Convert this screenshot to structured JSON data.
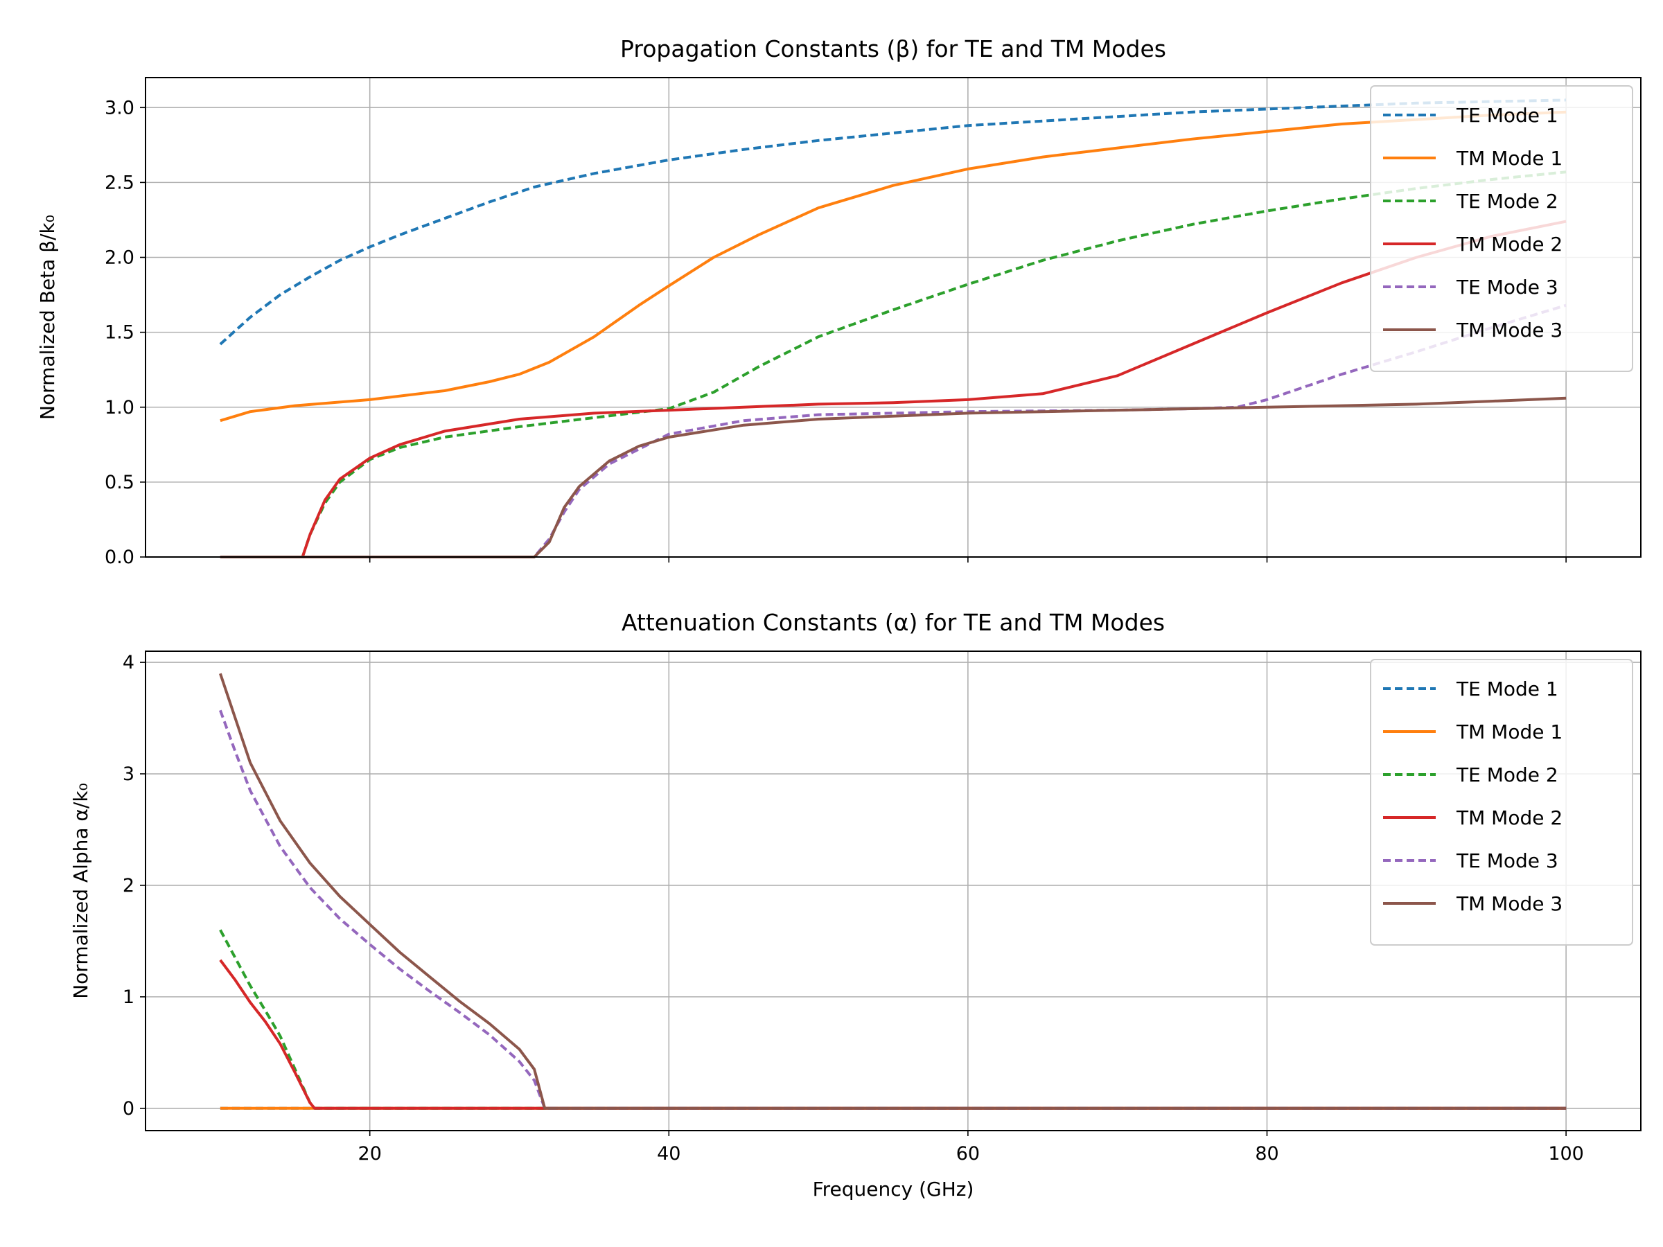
{
  "figure": {
    "xlabel": "Frequency (GHz)"
  },
  "chart_data": [
    {
      "type": "line",
      "title": "Propagation Constants (β) for TE and TM Modes",
      "xlabel": "",
      "ylabel": "Normalized Beta β/k₀",
      "xlim": [
        5,
        105
      ],
      "ylim": [
        0,
        3.2
      ],
      "xticks": [
        20,
        40,
        60,
        80,
        100
      ],
      "yticks": [
        0.0,
        0.5,
        1.0,
        1.5,
        2.0,
        2.5,
        3.0
      ],
      "xtick_labels": [
        "20",
        "40",
        "60",
        "80",
        "100"
      ],
      "ytick_labels": [
        "0.0",
        "0.5",
        "1.0",
        "1.5",
        "2.0",
        "2.5",
        "3.0"
      ],
      "grid": true,
      "legend_position": "top-right",
      "series": [
        {
          "name": "TE Mode 1",
          "color": "#1f77b4",
          "dash": true,
          "x": [
            10,
            12,
            14,
            16,
            18,
            20,
            22,
            25,
            28,
            31,
            35,
            40,
            45,
            50,
            55,
            60,
            65,
            70,
            75,
            80,
            85,
            90,
            95,
            100
          ],
          "y": [
            1.42,
            1.6,
            1.75,
            1.87,
            1.98,
            2.07,
            2.15,
            2.26,
            2.37,
            2.47,
            2.56,
            2.65,
            2.72,
            2.78,
            2.83,
            2.88,
            2.91,
            2.94,
            2.97,
            2.99,
            3.01,
            3.03,
            3.04,
            3.05
          ]
        },
        {
          "name": "TM Mode 1",
          "color": "#ff7f0e",
          "dash": false,
          "x": [
            10,
            12,
            15,
            20,
            25,
            28,
            30,
            32,
            35,
            38,
            40,
            43,
            46,
            50,
            55,
            60,
            65,
            70,
            75,
            80,
            85,
            90,
            95,
            100
          ],
          "y": [
            0.91,
            0.97,
            1.01,
            1.05,
            1.11,
            1.17,
            1.22,
            1.3,
            1.47,
            1.68,
            1.81,
            2.0,
            2.15,
            2.33,
            2.48,
            2.59,
            2.67,
            2.73,
            2.79,
            2.84,
            2.89,
            2.92,
            2.95,
            2.97
          ]
        },
        {
          "name": "TE Mode 2",
          "color": "#2ca02c",
          "dash": true,
          "x": [
            10,
            15.5,
            16,
            17,
            18,
            20,
            22,
            25,
            30,
            35,
            40,
            43,
            46,
            50,
            55,
            60,
            65,
            70,
            75,
            80,
            85,
            90,
            95,
            100
          ],
          "y": [
            0,
            0,
            0.15,
            0.36,
            0.5,
            0.65,
            0.73,
            0.8,
            0.87,
            0.93,
            0.99,
            1.1,
            1.27,
            1.47,
            1.65,
            1.82,
            1.98,
            2.11,
            2.22,
            2.31,
            2.39,
            2.46,
            2.52,
            2.57
          ]
        },
        {
          "name": "TM Mode 2",
          "color": "#d62728",
          "dash": false,
          "x": [
            10,
            15.5,
            16,
            17,
            18,
            20,
            22,
            25,
            30,
            35,
            40,
            45,
            50,
            55,
            60,
            65,
            70,
            75,
            80,
            85,
            90,
            95,
            100
          ],
          "y": [
            0,
            0,
            0.15,
            0.38,
            0.52,
            0.66,
            0.75,
            0.84,
            0.92,
            0.96,
            0.98,
            1.0,
            1.02,
            1.03,
            1.05,
            1.09,
            1.21,
            1.42,
            1.63,
            1.83,
            2.0,
            2.14,
            2.24
          ]
        },
        {
          "name": "TE Mode 3",
          "color": "#9467bd",
          "dash": true,
          "x": [
            10,
            31,
            32,
            33,
            34,
            36,
            38,
            40,
            45,
            50,
            60,
            70,
            75,
            78,
            80,
            85,
            90,
            95,
            100
          ],
          "y": [
            0,
            0,
            0.12,
            0.3,
            0.45,
            0.62,
            0.72,
            0.82,
            0.91,
            0.95,
            0.97,
            0.98,
            0.99,
            1.0,
            1.05,
            1.22,
            1.37,
            1.53,
            1.68
          ]
        },
        {
          "name": "TM Mode 3",
          "color": "#8c564b",
          "dash": false,
          "x": [
            10,
            31,
            32,
            33,
            34,
            36,
            38,
            40,
            45,
            50,
            60,
            70,
            80,
            85,
            90,
            95,
            100
          ],
          "y": [
            0,
            0,
            0.1,
            0.33,
            0.47,
            0.64,
            0.74,
            0.8,
            0.88,
            0.92,
            0.96,
            0.98,
            1.0,
            1.01,
            1.02,
            1.04,
            1.06
          ]
        }
      ]
    },
    {
      "type": "line",
      "title": "Attenuation Constants (α) for TE and TM Modes",
      "xlabel": "Frequency (GHz)",
      "ylabel": "Normalized Alpha α/k₀",
      "xlim": [
        5,
        105
      ],
      "ylim": [
        -0.2,
        4.1
      ],
      "xticks": [
        20,
        40,
        60,
        80,
        100
      ],
      "yticks": [
        0,
        1,
        2,
        3,
        4
      ],
      "xtick_labels": [
        "20",
        "40",
        "60",
        "80",
        "100"
      ],
      "ytick_labels": [
        "0",
        "1",
        "2",
        "3",
        "4"
      ],
      "grid": true,
      "legend_position": "top-right",
      "series": [
        {
          "name": "TE Mode 1",
          "color": "#1f77b4",
          "dash": true,
          "x": [
            10,
            100
          ],
          "y": [
            0,
            0
          ]
        },
        {
          "name": "TM Mode 1",
          "color": "#ff7f0e",
          "dash": false,
          "x": [
            10,
            100
          ],
          "y": [
            0,
            0
          ]
        },
        {
          "name": "TE Mode 2",
          "color": "#2ca02c",
          "dash": true,
          "x": [
            10,
            11,
            12,
            13,
            14,
            15,
            16,
            16.3,
            100
          ],
          "y": [
            1.6,
            1.35,
            1.1,
            0.88,
            0.65,
            0.35,
            0.05,
            0,
            0
          ]
        },
        {
          "name": "TM Mode 2",
          "color": "#d62728",
          "dash": false,
          "x": [
            10,
            11,
            12,
            13,
            14,
            15,
            16,
            16.3,
            100
          ],
          "y": [
            1.33,
            1.15,
            0.95,
            0.78,
            0.58,
            0.32,
            0.05,
            0,
            0
          ]
        },
        {
          "name": "TE Mode 3",
          "color": "#9467bd",
          "dash": true,
          "x": [
            10,
            11,
            12,
            14,
            16,
            18,
            20,
            22,
            24,
            26,
            28,
            30,
            31,
            31.7,
            100
          ],
          "y": [
            3.57,
            3.2,
            2.85,
            2.35,
            1.98,
            1.7,
            1.47,
            1.25,
            1.05,
            0.86,
            0.66,
            0.42,
            0.25,
            0,
            0
          ]
        },
        {
          "name": "TM Mode 3",
          "color": "#8c564b",
          "dash": false,
          "x": [
            10,
            11,
            12,
            14,
            16,
            18,
            20,
            22,
            24,
            26,
            28,
            30,
            31,
            31.7,
            100
          ],
          "y": [
            3.9,
            3.5,
            3.1,
            2.58,
            2.2,
            1.9,
            1.65,
            1.4,
            1.18,
            0.96,
            0.76,
            0.53,
            0.35,
            0,
            0
          ]
        }
      ]
    }
  ]
}
